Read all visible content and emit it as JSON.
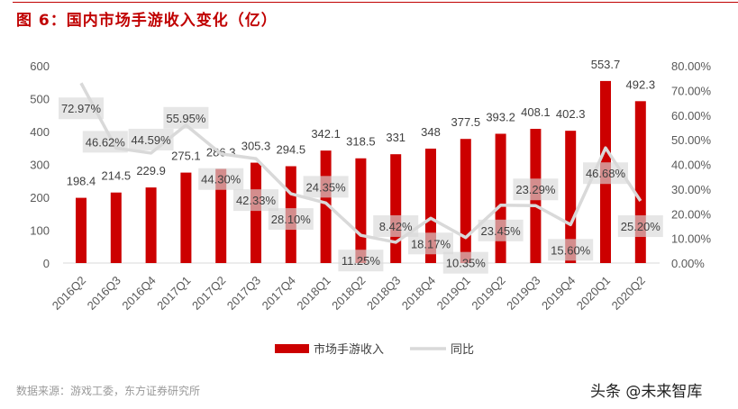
{
  "title": "图 6：国内市场手游收入变化（亿）",
  "source": "数据来源：游戏工委，东方证券研究所",
  "watermark": "头条 @未来智库",
  "colors": {
    "bar": "#cc0000",
    "line": "#d9d9d9",
    "title": "#c00000"
  },
  "chart_data": {
    "type": "bar+line",
    "categories": [
      "2016Q2",
      "2016Q3",
      "2016Q4",
      "2017Q1",
      "2017Q2",
      "2017Q3",
      "2017Q4",
      "2018Q1",
      "2018Q2",
      "2018Q3",
      "2018Q4",
      "2019Q1",
      "2019Q2",
      "2019Q3",
      "2019Q4",
      "2020Q1",
      "2020Q2"
    ],
    "series": [
      {
        "name": "市场手游收入",
        "type": "bar",
        "axis": "left",
        "values": [
          198.4,
          214.5,
          229.9,
          275.1,
          286.3,
          305.3,
          294.5,
          342.1,
          318.5,
          331,
          348,
          377.5,
          393.2,
          408.1,
          402.3,
          553.7,
          492.3
        ],
        "labels": [
          "198.4",
          "214.5",
          "229.9",
          "275.1",
          "286.3",
          "305.3",
          "294.5",
          "342.1",
          "318.5",
          "331",
          "348",
          "377.5",
          "393.2",
          "408.1",
          "402.3",
          "553.7",
          "492.3"
        ]
      },
      {
        "name": "同比",
        "type": "line",
        "axis": "right",
        "values": [
          72.97,
          46.62,
          44.59,
          55.95,
          44.3,
          42.33,
          28.1,
          24.35,
          11.25,
          8.42,
          18.17,
          10.35,
          23.45,
          23.29,
          15.6,
          46.68,
          25.2
        ],
        "labels": [
          "72.97%",
          "46.62%",
          "44.59%",
          "55.95%",
          "44.30%",
          "42.33%",
          "28.10%",
          "24.35%",
          "11.25%",
          "8.42%",
          "18.17%",
          "10.35%",
          "23.45%",
          "23.29%",
          "15.60%",
          "46.68%",
          "25.20%"
        ]
      }
    ],
    "left_axis": {
      "ylim": [
        0,
        600
      ],
      "ticks": [
        "0",
        "100",
        "200",
        "300",
        "400",
        "500",
        "600"
      ]
    },
    "right_axis": {
      "ylim": [
        0,
        80
      ],
      "ticks": [
        "0.00%",
        "10.00%",
        "20.00%",
        "30.00%",
        "40.00%",
        "50.00%",
        "60.00%",
        "70.00%",
        "80.00%"
      ]
    },
    "legend": {
      "position": "bottom",
      "items": [
        "市场手游收入",
        "同比"
      ]
    },
    "grid": false
  }
}
